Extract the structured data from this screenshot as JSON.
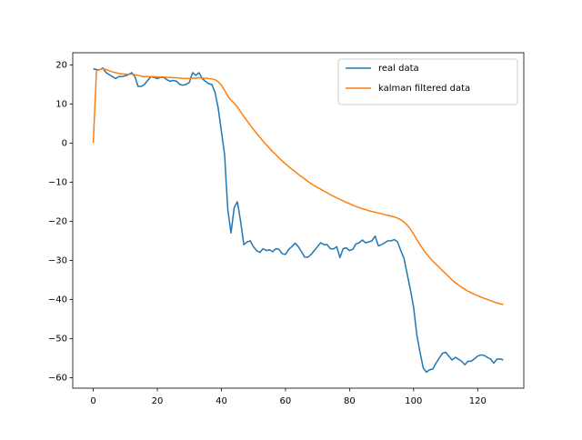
{
  "chart_data": {
    "type": "line",
    "x": [
      0,
      1,
      2,
      3,
      4,
      5,
      6,
      7,
      8,
      9,
      10,
      11,
      12,
      13,
      14,
      15,
      16,
      17,
      18,
      19,
      20,
      21,
      22,
      23,
      24,
      25,
      26,
      27,
      28,
      29,
      30,
      31,
      32,
      33,
      34,
      35,
      36,
      37,
      38,
      39,
      40,
      41,
      42,
      43,
      44,
      45,
      46,
      47,
      48,
      49,
      50,
      51,
      52,
      53,
      54,
      55,
      56,
      57,
      58,
      59,
      60,
      61,
      62,
      63,
      64,
      65,
      66,
      67,
      68,
      69,
      70,
      71,
      72,
      73,
      74,
      75,
      76,
      77,
      78,
      79,
      80,
      81,
      82,
      83,
      84,
      85,
      86,
      87,
      88,
      89,
      90,
      91,
      92,
      93,
      94,
      95,
      96,
      97,
      98,
      99,
      100,
      101,
      102,
      103,
      104,
      105,
      106,
      107,
      108,
      109,
      110,
      111,
      112,
      113,
      114,
      115,
      116,
      117,
      118,
      119,
      120,
      121,
      122,
      123,
      124,
      125,
      126,
      127,
      128
    ],
    "series": [
      {
        "name": "real data",
        "color": "#1f77b4",
        "values": [
          19,
          18.8,
          18.7,
          19.2,
          18,
          17.5,
          17,
          16.5,
          17,
          17,
          17.2,
          17.5,
          18,
          17,
          14.5,
          14.5,
          15,
          16,
          17,
          16.8,
          16.5,
          16.8,
          16.8,
          16.2,
          15.8,
          16,
          15.8,
          15,
          14.8,
          15,
          15.5,
          18,
          17.3,
          18,
          16.5,
          15.8,
          15.2,
          15,
          13,
          9,
          3,
          -3,
          -17,
          -23,
          -16.5,
          -15,
          -20,
          -26,
          -25.3,
          -25,
          -26.5,
          -27.5,
          -28,
          -27,
          -27.5,
          -27.3,
          -27.8,
          -27,
          -27.2,
          -28.3,
          -28.5,
          -27.2,
          -26.5,
          -25.6,
          -26.5,
          -27.8,
          -29.2,
          -29.2,
          -28.5,
          -27.5,
          -26.5,
          -25.5,
          -26,
          -26,
          -27,
          -27.1,
          -26.5,
          -29.3,
          -27,
          -26.8,
          -27.5,
          -27.2,
          -25.8,
          -25.5,
          -24.8,
          -25.5,
          -25.3,
          -25,
          -23.8,
          -26.3,
          -26,
          -25.5,
          -25,
          -25,
          -24.7,
          -25.3,
          -27.5,
          -29.5,
          -33.5,
          -37.5,
          -42,
          -49,
          -53.5,
          -57.5,
          -58.6,
          -58,
          -57.8,
          -56.3,
          -55,
          -53.8,
          -53.5,
          -54.5,
          -55.5,
          -54.8,
          -55.3,
          -55.8,
          -56.7,
          -55.8,
          -55.8,
          -55.2,
          -54.5,
          -54.2,
          -54.3,
          -54.8,
          -55.2,
          -56.3,
          -55.3,
          -55.2,
          -55.5
        ]
      },
      {
        "name": "kalman filtered data",
        "color": "#ff7f0e",
        "values": [
          0,
          18.5,
          18.8,
          19,
          18.8,
          18.5,
          18.2,
          18,
          17.8,
          17.7,
          17.6,
          17.6,
          17.6,
          17.5,
          17.3,
          17.1,
          17,
          17,
          17,
          17,
          16.9,
          16.9,
          16.9,
          16.8,
          16.8,
          16.7,
          16.7,
          16.6,
          16.5,
          16.5,
          16.5,
          16.6,
          16.6,
          16.7,
          16.6,
          16.6,
          16.5,
          16.4,
          16.2,
          15.7,
          14.8,
          13.5,
          12,
          11,
          10.2,
          9.2,
          8,
          6.8,
          5.7,
          4.6,
          3.5,
          2.5,
          1.5,
          0.5,
          -0.4,
          -1.3,
          -2.2,
          -3,
          -3.8,
          -4.6,
          -5.3,
          -6,
          -6.7,
          -7.3,
          -8,
          -8.6,
          -9.2,
          -9.8,
          -10.4,
          -10.9,
          -11.4,
          -11.8,
          -12.3,
          -12.7,
          -13.2,
          -13.6,
          -14,
          -14.4,
          -14.8,
          -15.2,
          -15.5,
          -15.9,
          -16.2,
          -16.5,
          -16.8,
          -17,
          -17.3,
          -17.5,
          -17.7,
          -17.9,
          -18.1,
          -18.3,
          -18.5,
          -18.7,
          -18.9,
          -19.2,
          -19.6,
          -20.2,
          -21,
          -22,
          -23.3,
          -24.7,
          -26,
          -27.2,
          -28.3,
          -29.3,
          -30.2,
          -31,
          -31.8,
          -32.6,
          -33.4,
          -34.2,
          -35,
          -35.7,
          -36.3,
          -36.9,
          -37.4,
          -37.9,
          -38.3,
          -38.7,
          -39,
          -39.4,
          -39.7,
          -40,
          -40.3,
          -40.6,
          -40.9,
          -41.1,
          -41.3
        ]
      }
    ],
    "xlim": [
      -6.4,
      134.4
    ],
    "ylim": [
      -62.7,
      23.1
    ],
    "xticks": [
      0,
      20,
      40,
      60,
      80,
      100,
      120
    ],
    "yticks": [
      {
        "value": -60,
        "label": "−60"
      },
      {
        "value": -50,
        "label": "−50"
      },
      {
        "value": -40,
        "label": "−40"
      },
      {
        "value": -30,
        "label": "−30"
      },
      {
        "value": -20,
        "label": "−20"
      },
      {
        "value": -10,
        "label": "−10"
      },
      0,
      10,
      20
    ],
    "legend": "upper right"
  }
}
